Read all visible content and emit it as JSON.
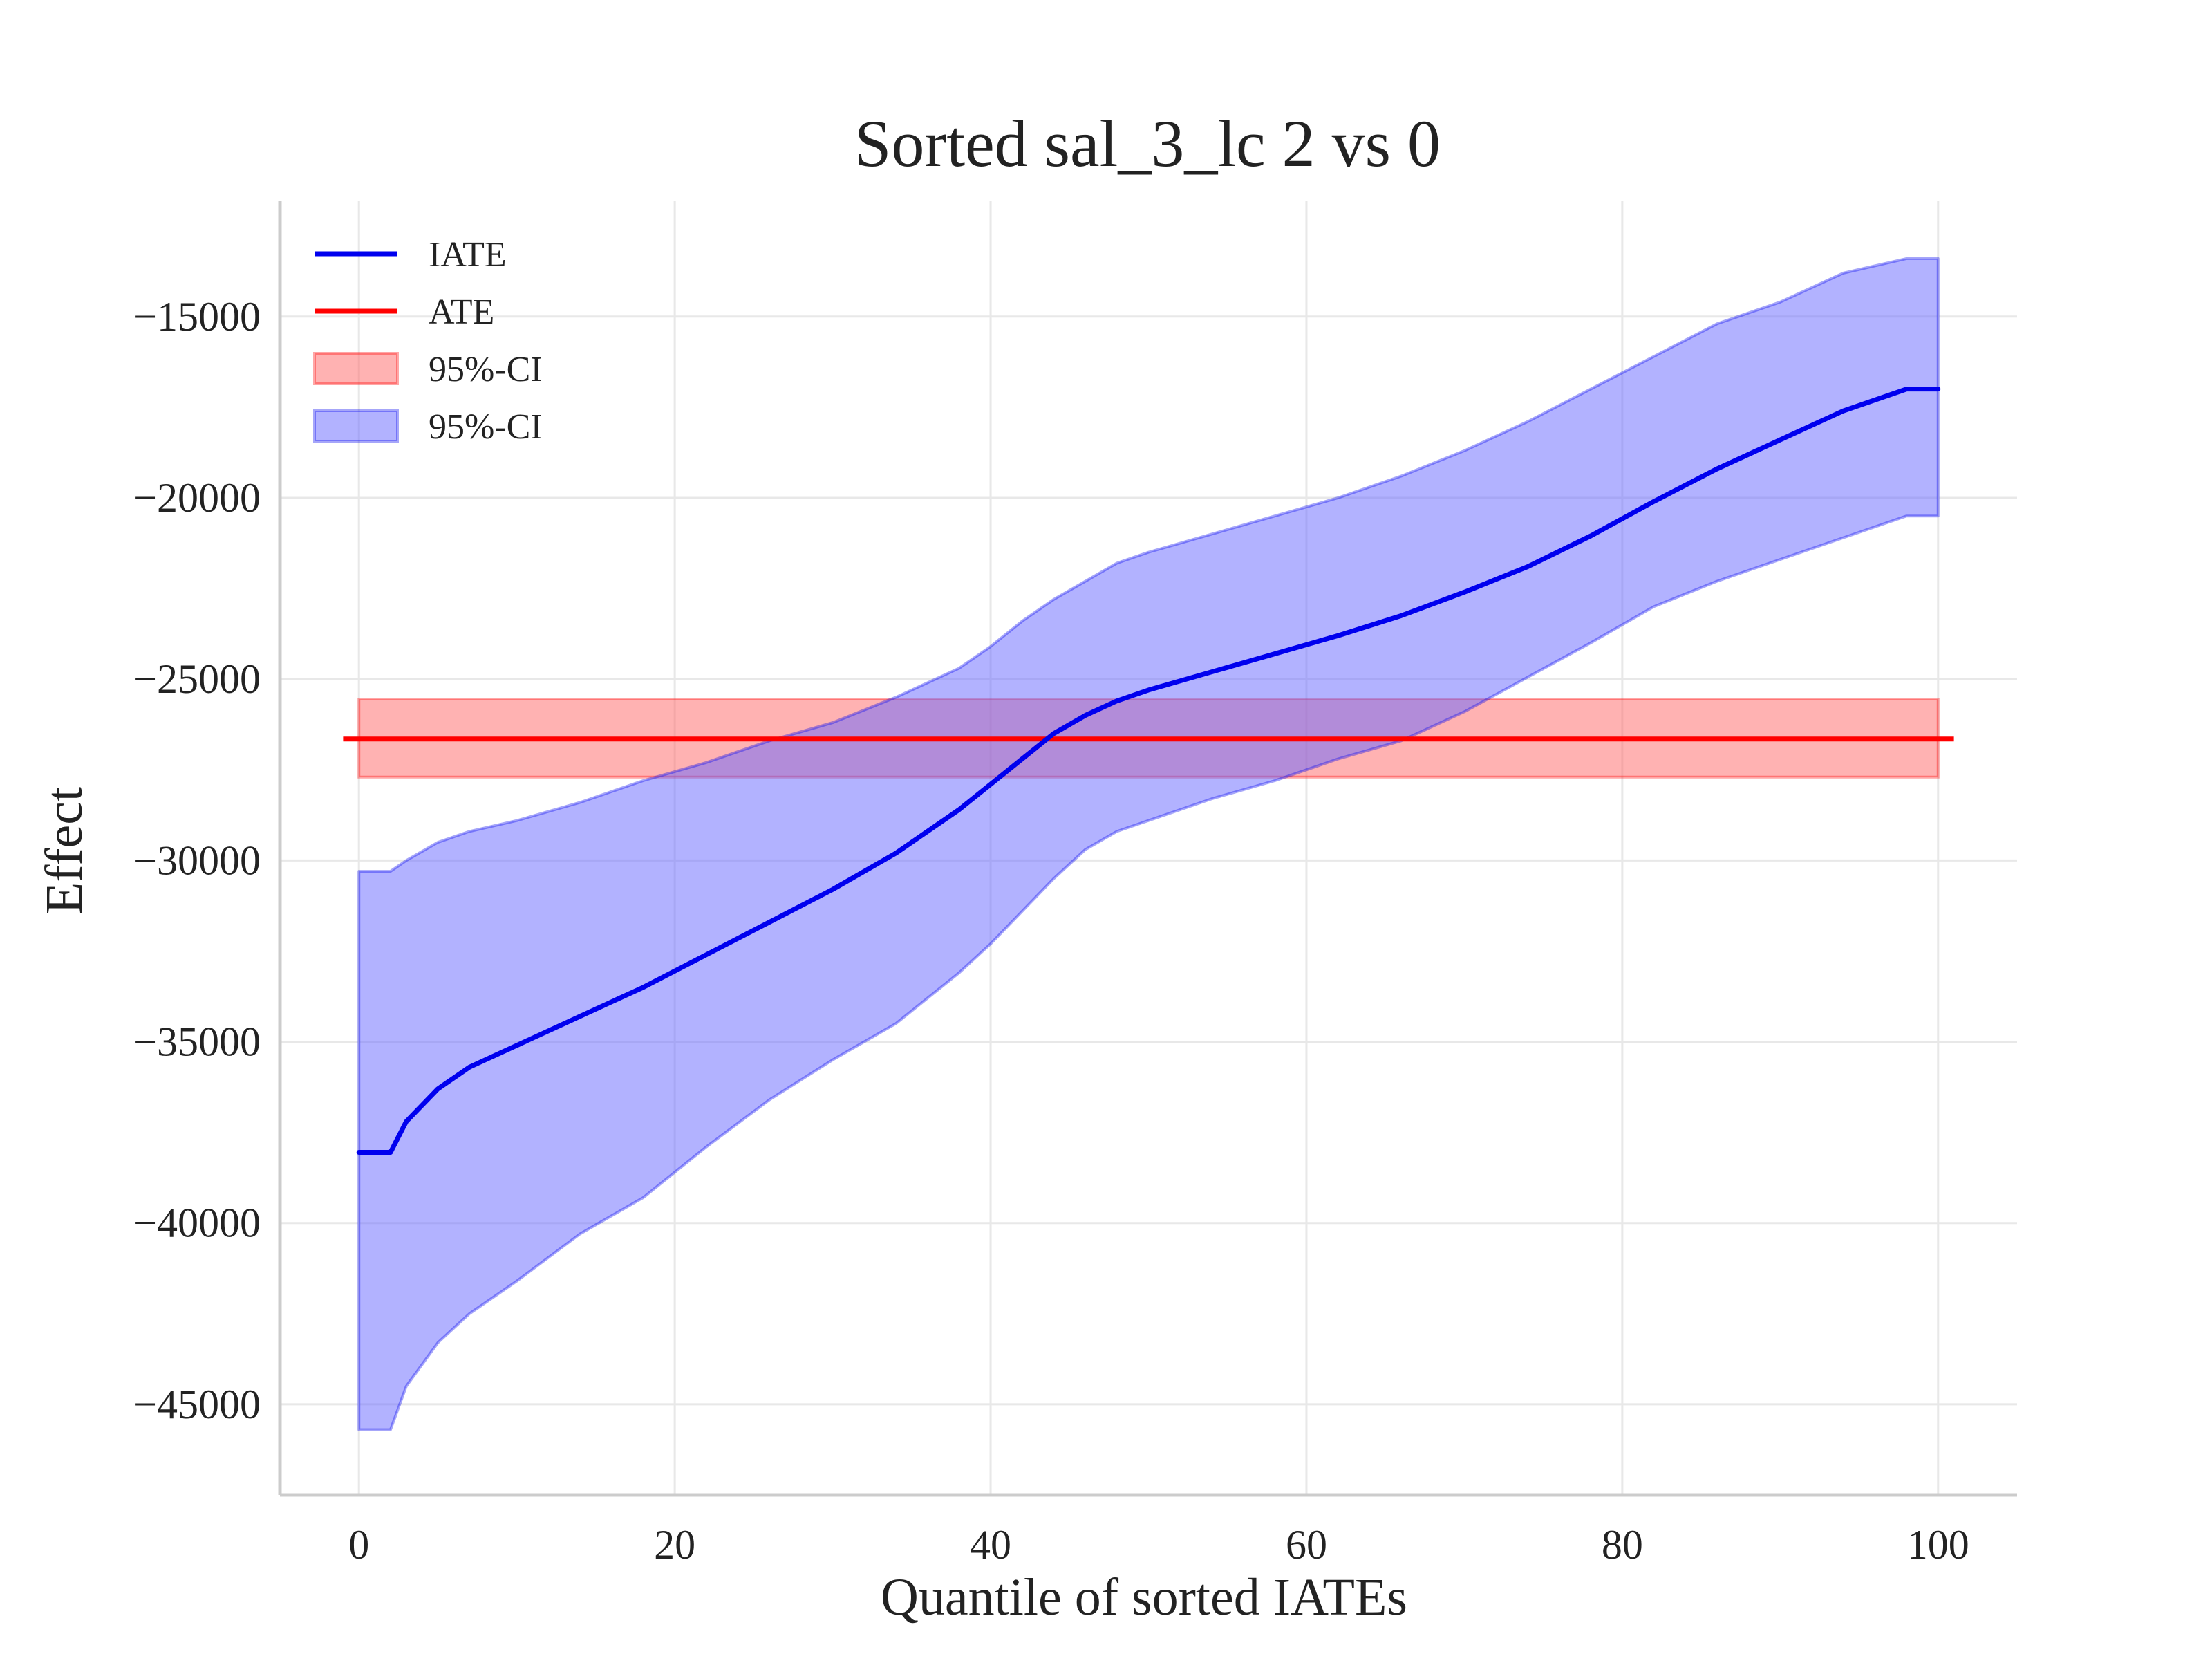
{
  "chart_data": {
    "type": "line",
    "title": "Sorted sal_3_lc 2 vs 0",
    "xlabel": "Quantile of sorted IATEs",
    "ylabel": "Effect",
    "xlim": [
      -5,
      105
    ],
    "ylim": [
      -47500,
      -11800
    ],
    "x_ticks": [
      0,
      20,
      40,
      60,
      80,
      100
    ],
    "x_tick_labels": [
      "0",
      "20",
      "40",
      "60",
      "80",
      "100"
    ],
    "y_ticks": [
      -15000,
      -20000,
      -25000,
      -30000,
      -35000,
      -40000,
      -45000
    ],
    "y_tick_labels": [
      "−15000",
      "−20000",
      "−25000",
      "−30000",
      "−35000",
      "−40000",
      "−45000"
    ],
    "grid": true,
    "legend_position": "top-left",
    "legend": [
      {
        "label": "IATE",
        "kind": "line",
        "color": "#0000ee"
      },
      {
        "label": "ATE",
        "kind": "line",
        "color": "#ff0000"
      },
      {
        "label": "95%-CI",
        "kind": "patch",
        "color": "#ff0000"
      },
      {
        "label": "95%-CI",
        "kind": "patch",
        "color": "#0000ee"
      }
    ],
    "colors": {
      "iate": "#0000ee",
      "ate": "#ff0000",
      "iate_ci_fill": "#6666ff",
      "ate_ci_fill": "#ff6666"
    },
    "ate": {
      "value": -26650,
      "ci": [
        -27700,
        -25550
      ],
      "x_range": [
        -1,
        101
      ]
    },
    "iate_series": {
      "x": [
        0,
        2,
        3,
        5,
        7,
        10,
        14,
        18,
        22,
        26,
        30,
        34,
        38,
        40,
        42,
        44,
        46,
        48,
        50,
        54,
        58,
        62,
        66,
        70,
        74,
        78,
        82,
        86,
        90,
        94,
        98,
        100
      ],
      "y": [
        -38050,
        -38050,
        -37200,
        -36300,
        -35700,
        -35100,
        -34300,
        -33500,
        -32600,
        -31700,
        -30800,
        -29800,
        -28600,
        -27900,
        -27200,
        -26500,
        -26000,
        -25600,
        -25300,
        -24800,
        -24300,
        -23800,
        -23250,
        -22600,
        -21900,
        -21050,
        -20100,
        -19200,
        -18400,
        -17600,
        -17000,
        -17000
      ],
      "lower": [
        -45700,
        -45700,
        -44500,
        -43300,
        -42500,
        -41600,
        -40300,
        -39300,
        -37900,
        -36600,
        -35500,
        -34500,
        -33100,
        -32300,
        -31400,
        -30500,
        -29700,
        -29200,
        -28900,
        -28300,
        -27800,
        -27200,
        -26700,
        -25900,
        -24950,
        -24000,
        -23000,
        -22300,
        -21700,
        -21100,
        -20500,
        -20500
      ],
      "upper": [
        -30300,
        -30300,
        -30000,
        -29500,
        -29200,
        -28900,
        -28400,
        -27800,
        -27300,
        -26700,
        -26200,
        -25500,
        -24700,
        -24100,
        -23400,
        -22800,
        -22300,
        -21800,
        -21500,
        -21000,
        -20500,
        -20000,
        -19400,
        -18700,
        -17900,
        -17000,
        -16100,
        -15200,
        -14600,
        -13800,
        -13400,
        -13400
      ]
    }
  }
}
